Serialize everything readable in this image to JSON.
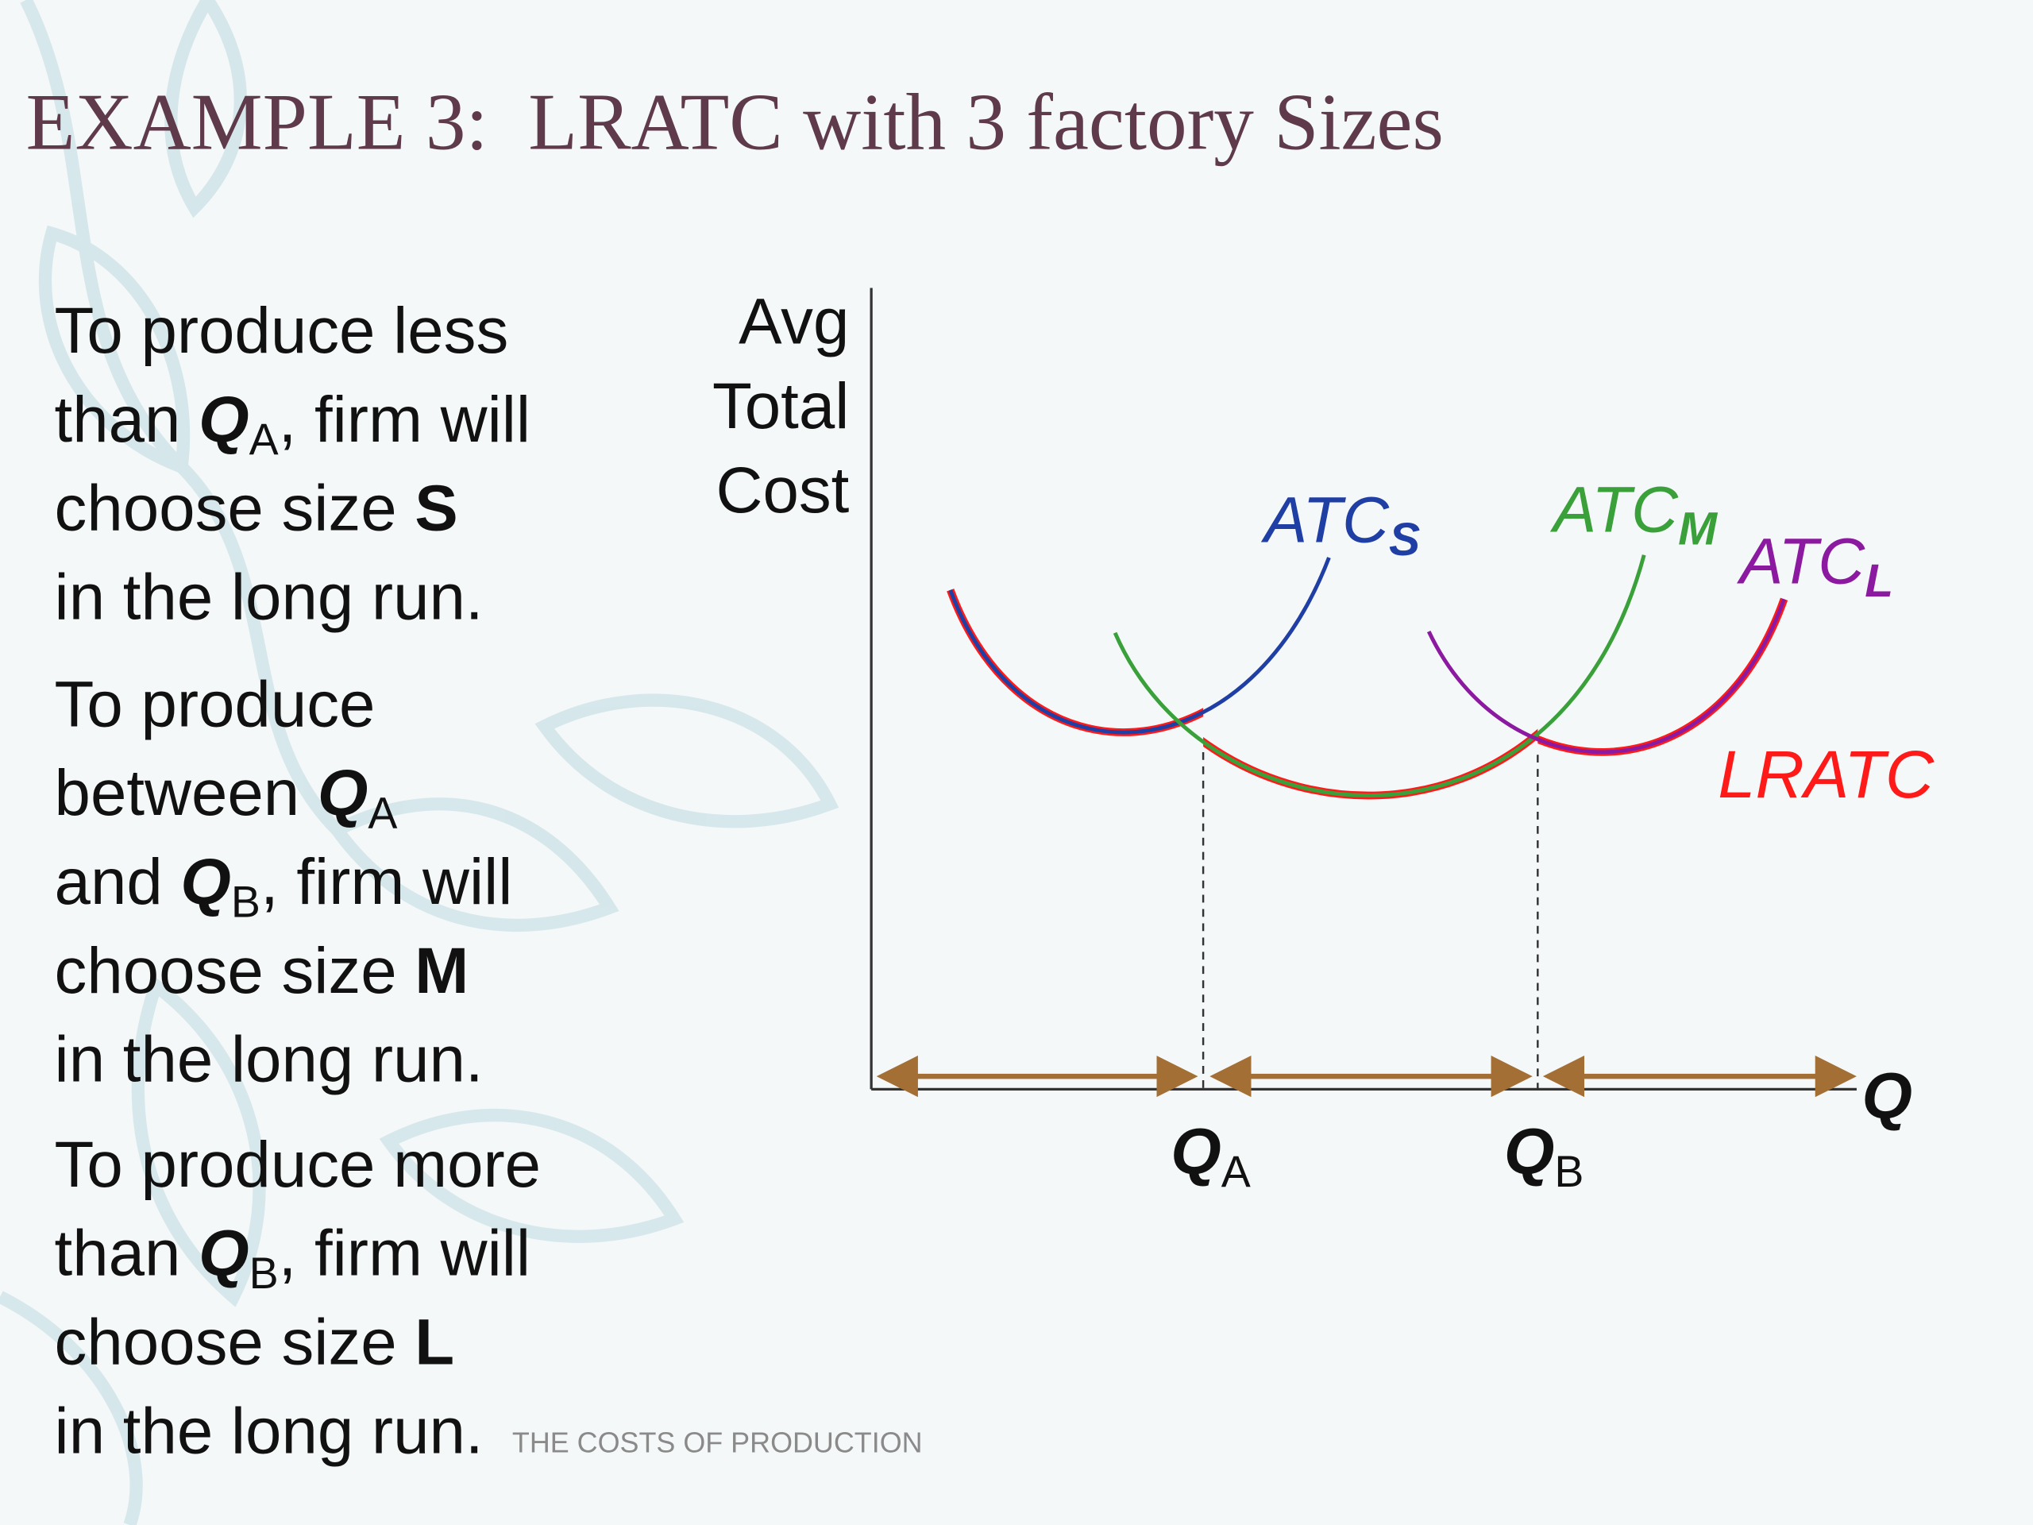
{
  "title": "EXAMPLE 3:  LRATC with 3 factory Sizes",
  "paragraphs": [
    [
      [
        "To produce less"
      ],
      [
        "than ",
        {
          "q": "Q",
          "sub": "A"
        },
        ", firm will"
      ],
      [
        "choose size ",
        {
          "bold": "S"
        }
      ],
      [
        "in the long run."
      ]
    ],
    [
      [
        "To produce"
      ],
      [
        "between ",
        {
          "q": "Q",
          "sub": "A"
        }
      ],
      [
        "and ",
        {
          "q": "Q",
          "sub": "B"
        },
        ", firm will"
      ],
      [
        "choose size ",
        {
          "bold": "M"
        }
      ],
      [
        "in the long run."
      ]
    ],
    [
      [
        "To produce more"
      ],
      [
        "than ",
        {
          "q": "Q",
          "sub": "B"
        },
        ", firm will"
      ],
      [
        "choose size ",
        {
          "bold": "L"
        }
      ],
      [
        "in the long run."
      ]
    ]
  ],
  "footer": "THE COSTS OF PRODUCTION",
  "diagram": {
    "y_axis_label": [
      "Avg",
      "Total",
      "Cost"
    ],
    "x_axis_label": "Q",
    "curves": [
      {
        "main": "ATC",
        "sub": "S"
      },
      {
        "main": "ATC",
        "sub": "M"
      },
      {
        "main": "ATC",
        "sub": "L"
      }
    ],
    "envelope_label": "LRATC",
    "quantity_marks": [
      {
        "q": "Q",
        "sub": "A"
      },
      {
        "q": "Q",
        "sub": "B"
      }
    ]
  }
}
